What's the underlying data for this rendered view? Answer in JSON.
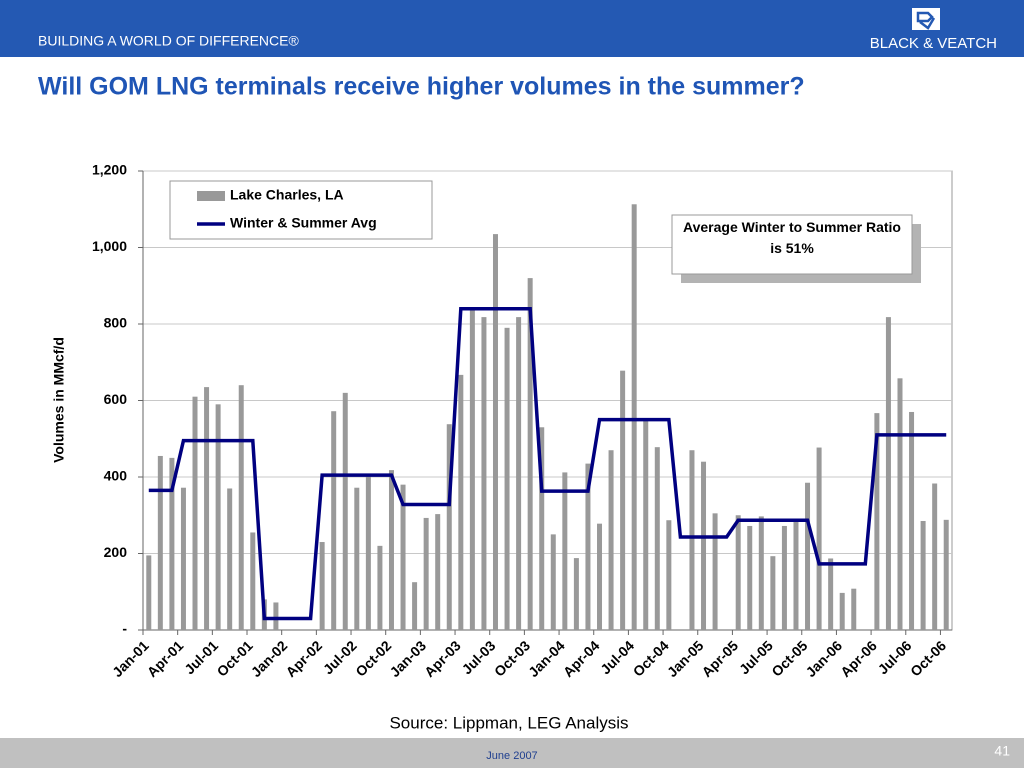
{
  "header": {
    "tagline": "BUILDING A WORLD OF DIFFERENCE®",
    "brand": "BLACK & VEATCH"
  },
  "chart_data": {
    "type": "bar",
    "title": "Will GOM LNG terminals receive higher volumes in the summer?",
    "y_label": "Volumes in MMcf/d",
    "annotation": "Average Winter to Summer Ratio is 51%",
    "source": "Source: Lippman, LEG Analysis",
    "categories": [
      "Jan-01",
      null,
      null,
      "Apr-01",
      null,
      null,
      "Jul-01",
      null,
      null,
      "Oct-01",
      null,
      null,
      "Jan-02",
      null,
      null,
      "Apr-02",
      null,
      null,
      "Jul-02",
      null,
      null,
      "Oct-02",
      null,
      null,
      "Jan-03",
      null,
      null,
      "Apr-03",
      null,
      null,
      "Jul-03",
      null,
      null,
      "Oct-03",
      null,
      null,
      "Jan-04",
      null,
      null,
      "Apr-04",
      null,
      null,
      "Jul-04",
      null,
      null,
      "Oct-04",
      null,
      null,
      "Jan-05",
      null,
      null,
      "Apr-05",
      null,
      null,
      "Jul-05",
      null,
      null,
      "Oct-05",
      null,
      null,
      "Jan-06",
      null,
      null,
      "Apr-06",
      null,
      null,
      "Jul-06",
      null,
      null,
      "Oct-06"
    ],
    "series": [
      {
        "name": "Lake Charles, LA",
        "type": "bar",
        "color": "#999999",
        "values": [
          195,
          455,
          450,
          372,
          610,
          635,
          590,
          370,
          640,
          255,
          80,
          72,
          0,
          0,
          0,
          230,
          572,
          620,
          372,
          405,
          220,
          418,
          380,
          125,
          293,
          303,
          538,
          667,
          840,
          818,
          1035,
          790,
          818,
          920,
          530,
          250,
          412,
          188,
          435,
          278,
          470,
          678,
          1113,
          550,
          478,
          287,
          0,
          470,
          440,
          305,
          0,
          300,
          272,
          297,
          193,
          272,
          290,
          385,
          477,
          187,
          97,
          108,
          0,
          567,
          818,
          658,
          570,
          285,
          383,
          288
        ]
      },
      {
        "name": "Winter & Summer Avg",
        "type": "line",
        "color": "#000080",
        "values": [
          365,
          365,
          365,
          495,
          495,
          495,
          495,
          495,
          495,
          495,
          30,
          30,
          30,
          30,
          30,
          405,
          405,
          405,
          405,
          405,
          405,
          405,
          328,
          328,
          328,
          328,
          328,
          840,
          840,
          840,
          840,
          840,
          840,
          840,
          363,
          363,
          363,
          363,
          363,
          550,
          550,
          550,
          550,
          550,
          550,
          550,
          243,
          243,
          243,
          243,
          243,
          287,
          287,
          287,
          287,
          287,
          287,
          287,
          173,
          173,
          173,
          173,
          173,
          510,
          510,
          510,
          510,
          510,
          510,
          510
        ]
      }
    ],
    "ylim": [
      0,
      1200
    ],
    "yticks": [
      {
        "value": 0,
        "label": "-"
      },
      200,
      400,
      600,
      800,
      {
        "value": 1000,
        "label": "1,000"
      },
      {
        "value": 1200,
        "label": "1,200"
      }
    ],
    "grid": true
  },
  "footer": {
    "date": "June 2007",
    "page": "41"
  }
}
